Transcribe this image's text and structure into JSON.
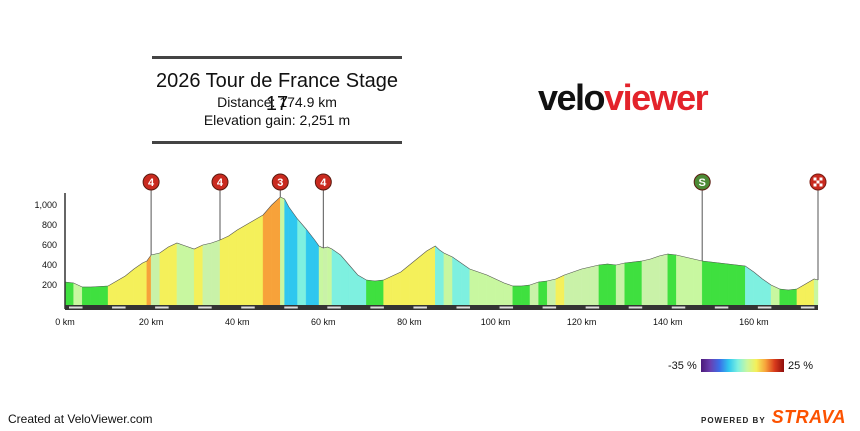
{
  "stage": {
    "title": "2026 Tour de France Stage 17",
    "distance": "Distance: 174.9 km",
    "elevation_gain": "Elevation gain: 2,251 m"
  },
  "logo": {
    "part1": "velo",
    "part2": "viewer"
  },
  "footer": {
    "created": "Created at VeloViewer.com",
    "powered": "POWERED BY",
    "strava": "STRAVA"
  },
  "gradient_legend": {
    "min": "-35 %",
    "max": "25 %",
    "colors": [
      "#4b1a7a",
      "#6a3fb0",
      "#3a6ee8",
      "#2fc7ef",
      "#7ef0e0",
      "#c8f7a0",
      "#f4f05a",
      "#f7a23a",
      "#d83a1c",
      "#8e0d0d"
    ]
  },
  "colors": {
    "climb_marker": "#c92a1f",
    "sprint_marker": "#4c8a35",
    "axis": "#333333"
  },
  "chart_data": {
    "type": "area",
    "xlabel": "",
    "ylabel": "",
    "xlim": [
      0,
      174.9
    ],
    "ylim": [
      0,
      1100
    ],
    "x_ticks": [
      0,
      20,
      40,
      60,
      80,
      100,
      120,
      140,
      160
    ],
    "x_tick_labels": [
      "0 km",
      "20 km",
      "40 km",
      "60 km",
      "80 km",
      "100 km",
      "120 km",
      "140 km",
      "160 km"
    ],
    "y_ticks": [
      200,
      400,
      600,
      800,
      1000
    ],
    "y_tick_labels": [
      "200",
      "400",
      "600",
      "800",
      "1,000"
    ],
    "profile": [
      [
        0,
        230
      ],
      [
        2,
        220
      ],
      [
        4,
        180
      ],
      [
        6,
        180
      ],
      [
        8,
        185
      ],
      [
        10,
        190
      ],
      [
        12,
        240
      ],
      [
        14,
        290
      ],
      [
        16,
        360
      ],
      [
        18,
        420
      ],
      [
        19,
        440
      ],
      [
        20,
        500
      ],
      [
        22,
        520
      ],
      [
        24,
        580
      ],
      [
        26,
        620
      ],
      [
        28,
        590
      ],
      [
        30,
        560
      ],
      [
        32,
        600
      ],
      [
        34,
        620
      ],
      [
        36,
        650
      ],
      [
        38,
        690
      ],
      [
        40,
        750
      ],
      [
        42,
        800
      ],
      [
        44,
        850
      ],
      [
        46,
        900
      ],
      [
        48,
        1000
      ],
      [
        50,
        1080
      ],
      [
        51,
        1060
      ],
      [
        52,
        980
      ],
      [
        54,
        860
      ],
      [
        56,
        760
      ],
      [
        58,
        650
      ],
      [
        59,
        590
      ],
      [
        60,
        570
      ],
      [
        61,
        580
      ],
      [
        62,
        560
      ],
      [
        64,
        500
      ],
      [
        66,
        400
      ],
      [
        68,
        300
      ],
      [
        70,
        250
      ],
      [
        72,
        240
      ],
      [
        74,
        250
      ],
      [
        76,
        290
      ],
      [
        78,
        330
      ],
      [
        80,
        400
      ],
      [
        82,
        470
      ],
      [
        84,
        540
      ],
      [
        86,
        590
      ],
      [
        87,
        550
      ],
      [
        88,
        520
      ],
      [
        90,
        480
      ],
      [
        92,
        420
      ],
      [
        94,
        360
      ],
      [
        96,
        330
      ],
      [
        98,
        300
      ],
      [
        100,
        260
      ],
      [
        102,
        220
      ],
      [
        104,
        190
      ],
      [
        106,
        190
      ],
      [
        108,
        200
      ],
      [
        110,
        230
      ],
      [
        112,
        240
      ],
      [
        114,
        260
      ],
      [
        116,
        300
      ],
      [
        118,
        330
      ],
      [
        120,
        360
      ],
      [
        122,
        380
      ],
      [
        124,
        400
      ],
      [
        126,
        410
      ],
      [
        128,
        400
      ],
      [
        130,
        420
      ],
      [
        132,
        430
      ],
      [
        134,
        440
      ],
      [
        136,
        460
      ],
      [
        138,
        490
      ],
      [
        140,
        510
      ],
      [
        142,
        500
      ],
      [
        144,
        480
      ],
      [
        146,
        460
      ],
      [
        148,
        440
      ],
      [
        150,
        430
      ],
      [
        152,
        420
      ],
      [
        154,
        410
      ],
      [
        156,
        400
      ],
      [
        158,
        390
      ],
      [
        160,
        330
      ],
      [
        162,
        260
      ],
      [
        164,
        200
      ],
      [
        166,
        160
      ],
      [
        168,
        150
      ],
      [
        170,
        160
      ],
      [
        172,
        210
      ],
      [
        174,
        260
      ],
      [
        174.9,
        250
      ]
    ],
    "markers": [
      {
        "km": 20,
        "type": "climb",
        "label": "4"
      },
      {
        "km": 36,
        "type": "climb",
        "label": "4"
      },
      {
        "km": 50,
        "type": "climb",
        "label": "3"
      },
      {
        "km": 60,
        "type": "climb",
        "label": "4"
      },
      {
        "km": 148,
        "type": "sprint",
        "label": "S"
      },
      {
        "km": 174.9,
        "type": "finish",
        "label": ""
      }
    ]
  }
}
